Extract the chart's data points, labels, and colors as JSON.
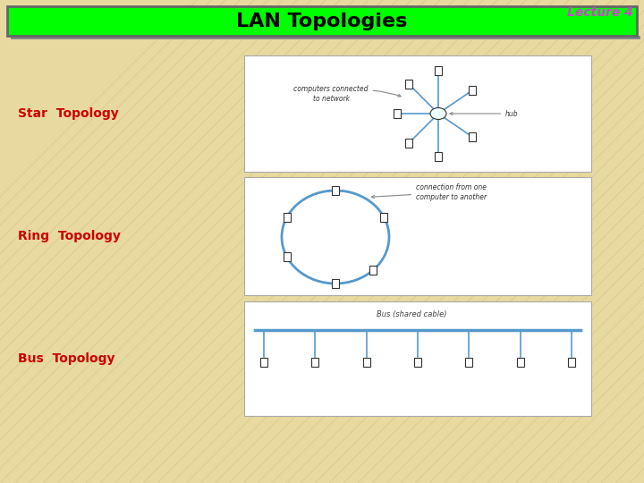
{
  "bg_color": "#E8D9A0",
  "bg_stripe_color": "#C8B870",
  "title_text": "Lecture 4",
  "title_color": "#CC44CC",
  "title_fontsize": 10,
  "header_text": "LAN Topologies",
  "header_bg": "#00FF00",
  "header_color": "#000000",
  "header_fontsize": 16,
  "label_color": "#CC0000",
  "label_fontsize": 10,
  "star_label": "Star  Topology",
  "ring_label": "Ring  Topology",
  "bus_label": "Bus  Topology",
  "diagram_bg": "#FFFFFF",
  "diagram_border": "#AAAAAA",
  "line_color": "#5599CC",
  "node_edge": "#333333",
  "node_fill": "#FFFFFF",
  "annotation_color": "#333333",
  "annotation_fontsize": 5.5
}
